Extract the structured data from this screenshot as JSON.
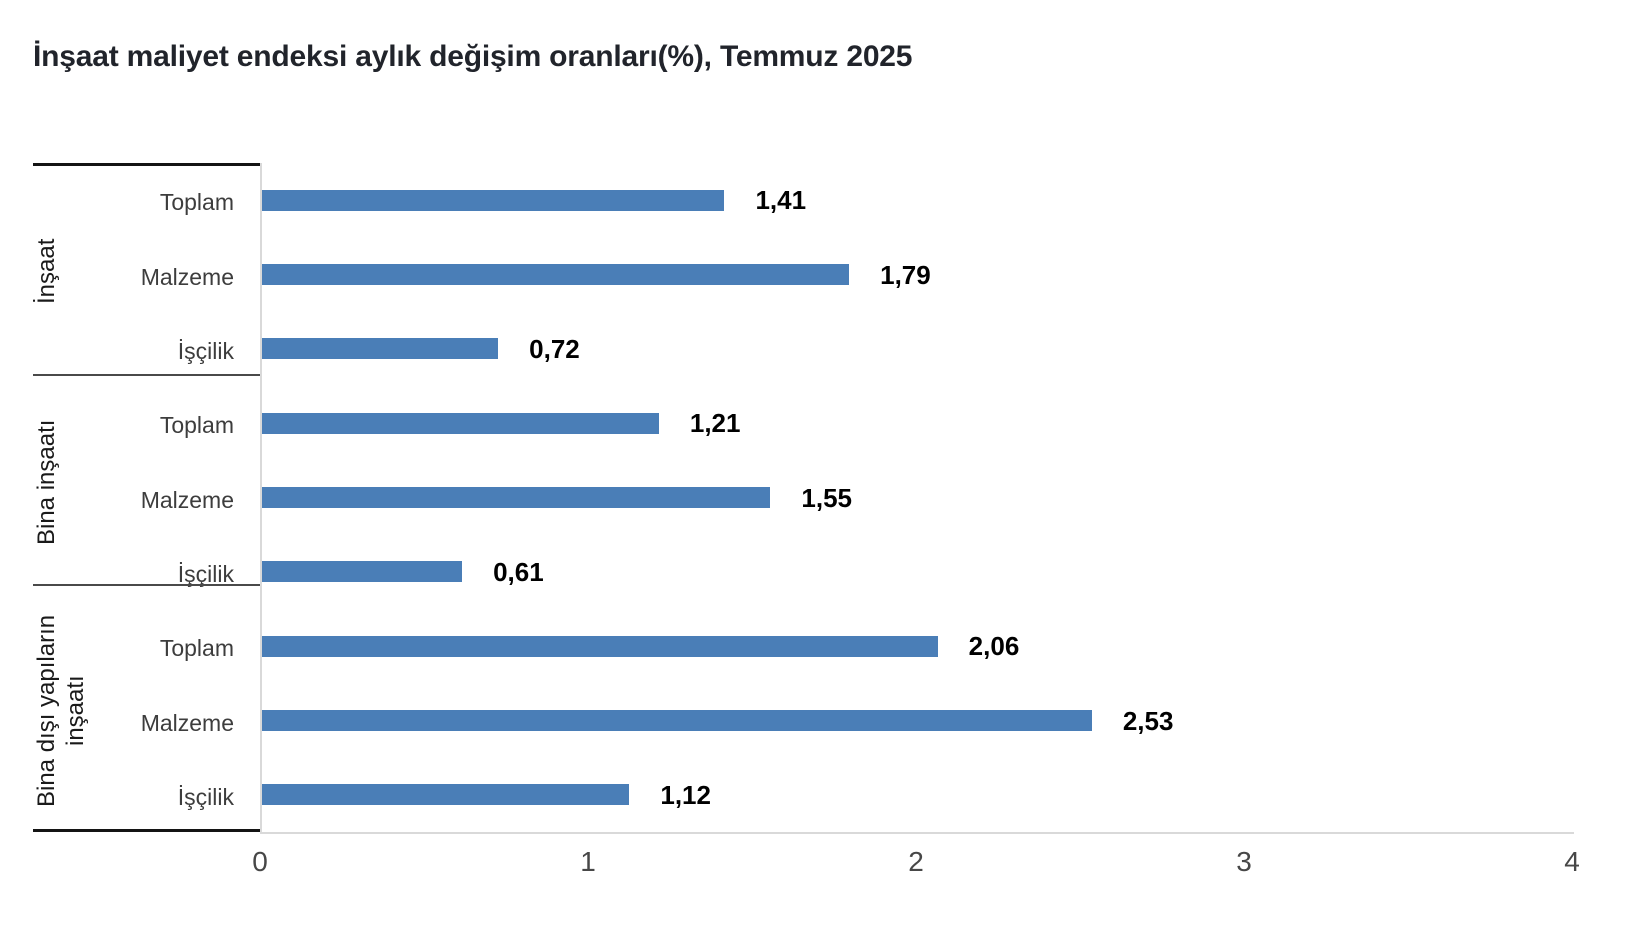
{
  "chart_data": {
    "type": "bar",
    "orientation": "horizontal",
    "title": "İnşaat maliyet endeksi aylık değişim oranları(%), Temmuz 2025",
    "bar_color": "#4A7EB7",
    "x_axis": {
      "min": 0,
      "max": 4,
      "ticks": [
        "0",
        "1",
        "2",
        "3",
        "4"
      ]
    },
    "grid": "off",
    "legend": "none",
    "groups": [
      {
        "label": "İnşaat",
        "label_lines": [
          "İnşaat"
        ],
        "rows": [
          {
            "label": "Toplam",
            "value": 1.41,
            "display": "1,41"
          },
          {
            "label": "Malzeme",
            "value": 1.79,
            "display": "1,79"
          },
          {
            "label": "İşçilik",
            "value": 0.72,
            "display": "0,72"
          }
        ]
      },
      {
        "label": "Bina inşaatı",
        "label_lines": [
          "Bina inşaatı"
        ],
        "rows": [
          {
            "label": "Toplam",
            "value": 1.21,
            "display": "1,21"
          },
          {
            "label": "Malzeme",
            "value": 1.55,
            "display": "1,55"
          },
          {
            "label": "İşçilik",
            "value": 0.61,
            "display": "0,61"
          }
        ]
      },
      {
        "label": "Bina dışı yapıların inşaatı",
        "label_lines": [
          "Bina dışı yapıların",
          "inşaatı"
        ],
        "rows": [
          {
            "label": "Toplam",
            "value": 2.06,
            "display": "2,06"
          },
          {
            "label": "Malzeme",
            "value": 2.53,
            "display": "2,53"
          },
          {
            "label": "İşçilik",
            "value": 1.12,
            "display": "1,12"
          }
        ]
      }
    ]
  }
}
